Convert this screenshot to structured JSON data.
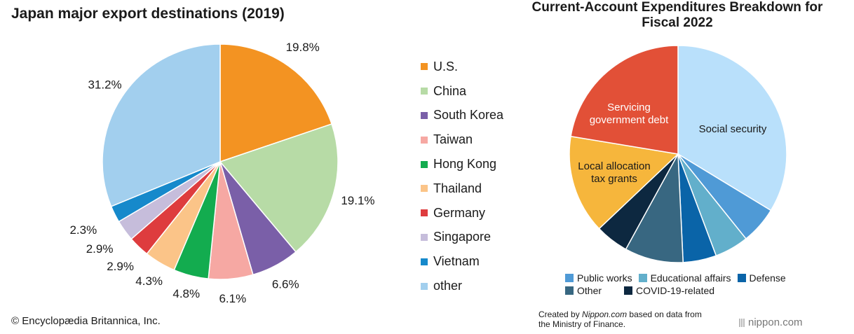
{
  "left": {
    "credit": "© Encyclopædia Britannica, Inc."
  },
  "right": {
    "credit_prefix": "Created by ",
    "credit_site": "Nippon.com",
    "credit_suffix": " based on data from",
    "credit_line2": "the Ministry of Finance.",
    "brand": "nippon.com"
  },
  "chart_data": [
    {
      "type": "pie",
      "title": "Japan major export destinations (2019)",
      "legend_position": "right",
      "slices": [
        {
          "label": "U.S.",
          "value": 19.8,
          "value_label": "19.8%",
          "color": "#f39322"
        },
        {
          "label": "China",
          "value": 19.1,
          "value_label": "19.1%",
          "color": "#b7dba6"
        },
        {
          "label": "South Korea",
          "value": 6.6,
          "value_label": "6.6%",
          "color": "#7a5fa8"
        },
        {
          "label": "Taiwan",
          "value": 6.1,
          "value_label": "6.1%",
          "color": "#f6a8a3"
        },
        {
          "label": "Hong Kong",
          "value": 4.8,
          "value_label": "4.8%",
          "color": "#13ac4f"
        },
        {
          "label": "Thailand",
          "value": 4.3,
          "value_label": "4.3%",
          "color": "#fbc488"
        },
        {
          "label": "Germany",
          "value": 2.9,
          "value_label": "2.9%",
          "color": "#de3c3e"
        },
        {
          "label": "Singapore",
          "value": 2.9,
          "value_label": "2.9%",
          "color": "#c6bddb"
        },
        {
          "label": "Vietnam",
          "value": 2.3,
          "value_label": "2.3%",
          "color": "#1689cb"
        },
        {
          "label": "other",
          "value": 31.2,
          "value_label": "31.2%",
          "color": "#a2cfee"
        }
      ]
    },
    {
      "type": "pie",
      "title": "Current-Account Expenditures Breakdown for Fiscal 2022",
      "legend_position": "bottom",
      "slices": [
        {
          "label": "Social security",
          "value": 34,
          "color": "#b9e0fb",
          "inside_label": "Social security",
          "label_color": "#1a1a1a"
        },
        {
          "label": "Public works",
          "value": 5.6,
          "color": "#4f9ad6",
          "inside_label": "",
          "label_color": "#1a1a1a"
        },
        {
          "label": "Educational affairs",
          "value": 5.1,
          "color": "#62afcb",
          "inside_label": "",
          "label_color": "#1a1a1a"
        },
        {
          "label": "Defense",
          "value": 5.0,
          "color": "#0a64a8",
          "inside_label": "",
          "label_color": "#ffffff"
        },
        {
          "label": "Other",
          "value": 8.8,
          "color": "#386781",
          "inside_label": "",
          "label_color": "#ffffff"
        },
        {
          "label": "COVID-19-related",
          "value": 5.0,
          "color": "#0d2840",
          "inside_label": "",
          "label_color": "#ffffff"
        },
        {
          "label": "Local allocation tax grants",
          "value": 14.8,
          "color": "#f6b63c",
          "inside_label": "Local allocation\ntax grants",
          "label_color": "#1a1a1a"
        },
        {
          "label": "Servicing government debt",
          "value": 22.6,
          "color": "#e25037",
          "inside_label": "Servicing\ngovernment debt",
          "label_color": "#ffffff"
        }
      ],
      "legend": [
        "Public works",
        "Educational affairs",
        "Defense",
        "Other",
        "COVID-19-related"
      ]
    }
  ]
}
